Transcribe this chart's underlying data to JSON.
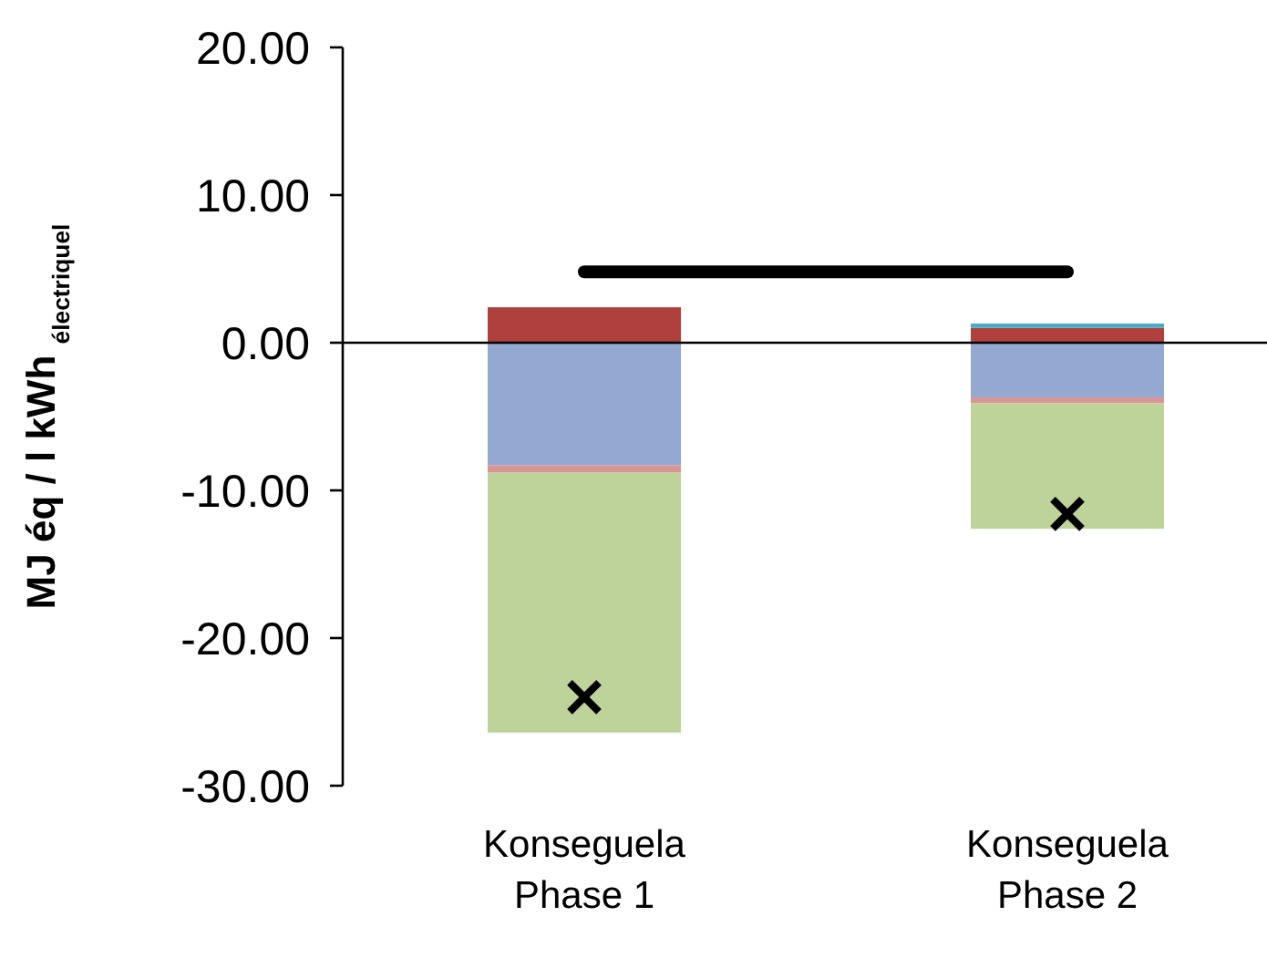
{
  "chart_data": {
    "type": "bar",
    "stacked": true,
    "ylabel": "MJ éq / l kWh $_{électriquel}$",
    "categories": [
      "Konseguela Phase 1",
      "Konseguela Phase 2"
    ],
    "ylim": [
      -30,
      20
    ],
    "yticks": [
      {
        "value": -30,
        "label": "-30.00"
      },
      {
        "value": -20,
        "label": "-20.00"
      },
      {
        "value": -10,
        "label": "-10.00"
      },
      {
        "value": 0,
        "label": "0.00"
      },
      {
        "value": 10,
        "label": "10.00"
      },
      {
        "value": 20,
        "label": "20.00"
      }
    ],
    "series": [
      {
        "color": "#b0403e",
        "values": [
          2.4,
          1.0
        ]
      },
      {
        "color": "#4bacc6",
        "values": [
          null,
          0.3
        ]
      },
      {
        "color": "#93a9d2",
        "values": [
          -8.3,
          -3.7
        ]
      },
      {
        "color": "#d99594",
        "values": [
          -0.5,
          -0.4
        ]
      },
      {
        "color": "#bdd39a",
        "values": [
          -17.6,
          -8.5
        ]
      },
      {
        "type": "line",
        "color": "#000000",
        "values": [
          4.8,
          4.8
        ]
      },
      {
        "type": "scatter",
        "marker": "cross",
        "color": "#000000",
        "values": [
          -24.0,
          -11.6
        ]
      }
    ]
  }
}
